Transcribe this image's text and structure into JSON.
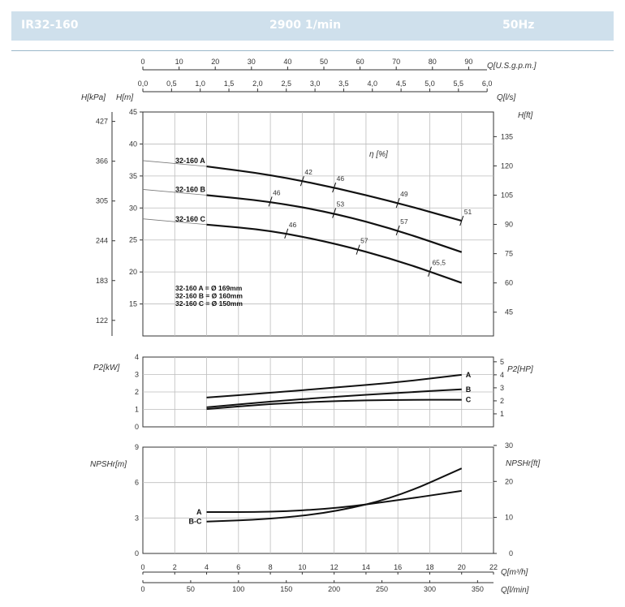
{
  "header": {
    "model": "IR32-160",
    "speed": "2900 1/min",
    "frequency": "50Hz"
  },
  "chart_data": [
    {
      "type": "line",
      "id": "head",
      "ylabel_left": "H[m]",
      "ylabel_left2": "H[kPa]",
      "ylabel_right": "H[ft]",
      "efficiency_label": "η [%]",
      "x_unit_top": "Q[U.S.g.p.m.]",
      "x_unit_top2": "Q[l/s]",
      "ylim": [
        10,
        45
      ],
      "xlim_m3h": [
        0,
        22
      ],
      "y_ticks": [
        "15",
        "20",
        "25",
        "30",
        "35",
        "40",
        "45"
      ],
      "kpa_ticks": [
        "122",
        "183",
        "244",
        "305",
        "366",
        "427"
      ],
      "ft_ticks": [
        "45",
        "60",
        "75",
        "90",
        "105",
        "120",
        "135"
      ],
      "ls_ticks": [
        "0,0",
        "0,5",
        "1,0",
        "1,5",
        "2,0",
        "2,5",
        "3,0",
        "3,5",
        "4,0",
        "4,5",
        "5,0",
        "5,5",
        "6,0"
      ],
      "usgpm_ticks": [
        "0",
        "10",
        "20",
        "30",
        "40",
        "50",
        "60",
        "70",
        "80",
        "90"
      ],
      "series": [
        {
          "name": "32-160 A",
          "x": [
            4,
            8,
            12,
            16,
            20
          ],
          "y": [
            36.5,
            35.2,
            33.2,
            30.8,
            28.0
          ],
          "efficiency": [
            {
              "x": 10,
              "label": "42"
            },
            {
              "x": 12,
              "label": "46"
            },
            {
              "x": 16,
              "label": "49"
            },
            {
              "x": 20,
              "label": "51"
            }
          ]
        },
        {
          "name": "32-160 B",
          "x": [
            4,
            8,
            12,
            16,
            20
          ],
          "y": [
            32.0,
            31.0,
            29.2,
            26.5,
            23.1
          ],
          "efficiency": [
            {
              "x": 8,
              "label": "46"
            },
            {
              "x": 12,
              "label": "53"
            },
            {
              "x": 16,
              "label": "57"
            }
          ]
        },
        {
          "name": "32-160 C",
          "x": [
            4,
            8,
            12,
            16,
            20
          ],
          "y": [
            27.4,
            26.5,
            24.5,
            21.8,
            18.3
          ],
          "efficiency": [
            {
              "x": 9,
              "label": "46"
            },
            {
              "x": 13.5,
              "label": "57"
            },
            {
              "x": 18,
              "label": "65,5"
            }
          ]
        }
      ],
      "diameters": [
        "32-160 A = Ø 169mm",
        "32-160 B = Ø 160mm",
        "32-160 C = Ø 150mm"
      ]
    },
    {
      "type": "line",
      "id": "power",
      "ylabel_left": "P2[kW]",
      "ylabel_right": "P2[HP]",
      "ylim": [
        0,
        4
      ],
      "y_ticks": [
        "0",
        "1",
        "2",
        "3",
        "4"
      ],
      "hp_ticks": [
        "1",
        "2",
        "3",
        "4",
        "5"
      ],
      "series": [
        {
          "name": "A",
          "x": [
            4,
            8,
            12,
            16,
            20
          ],
          "y": [
            1.68,
            1.95,
            2.25,
            2.55,
            2.98
          ]
        },
        {
          "name": "B",
          "x": [
            4,
            8,
            12,
            16,
            20
          ],
          "y": [
            1.12,
            1.45,
            1.72,
            1.95,
            2.15
          ]
        },
        {
          "name": "C",
          "x": [
            4,
            8,
            12,
            16,
            20
          ],
          "y": [
            1.02,
            1.32,
            1.48,
            1.55,
            1.55
          ]
        }
      ]
    },
    {
      "type": "line",
      "id": "npsh",
      "ylabel_left": "NPSHr[m]",
      "ylabel_right": "NPSHr[ft]",
      "ylim": [
        0,
        9
      ],
      "y_ticks": [
        "0",
        "3",
        "6",
        "9"
      ],
      "ft_ticks": [
        "0",
        "10",
        "20",
        "30"
      ],
      "x_unit_bottom": "Q[m³/h]",
      "x_unit_bottom2": "Q[l/min]",
      "m3h_ticks": [
        "0",
        "2",
        "4",
        "6",
        "8",
        "10",
        "12",
        "14",
        "16",
        "18",
        "20",
        "22"
      ],
      "lmin_ticks": [
        "0",
        "50",
        "100",
        "150",
        "200",
        "250",
        "300",
        "350"
      ],
      "series": [
        {
          "name": "A",
          "x": [
            4,
            8,
            12,
            16,
            20
          ],
          "y": [
            3.5,
            3.5,
            3.8,
            4.5,
            5.3
          ]
        },
        {
          "name": "B-C",
          "x": [
            4,
            8,
            12,
            16,
            20
          ],
          "y": [
            2.7,
            2.9,
            3.5,
            4.8,
            7.2
          ]
        }
      ]
    }
  ]
}
